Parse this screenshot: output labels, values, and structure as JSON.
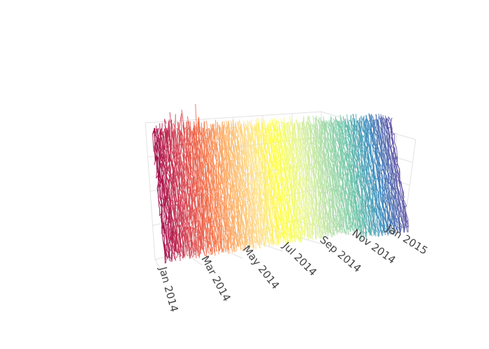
{
  "chart_data": {
    "type": "line",
    "projection": "3d",
    "title": "",
    "xlabel": "",
    "ylabel": "",
    "zlabel": "",
    "x_axis": {
      "ticks": [
        "Jan 2014",
        "Mar 2014",
        "May 2014",
        "Jul 2014",
        "Sep 2014",
        "Nov 2014",
        "Jan 2015"
      ],
      "range": [
        "2014-01-01",
        "2015-01-20"
      ]
    },
    "y_axis": {
      "tick_labels_visible": false
    },
    "z_axis": {
      "tick_labels_visible": false
    },
    "grid": true,
    "showlegend": false,
    "colorscale": "Spectral",
    "colorscale_stops": [
      "#9e0142",
      "#d53e4f",
      "#f46d43",
      "#fdae61",
      "#fee08b",
      "#ffff3b",
      "#e6f598",
      "#abdda4",
      "#66c2a5",
      "#3288bd",
      "#5e4fa2"
    ],
    "series_description": "Daily ridge lines, one per day from Jan 2014 to Jan 2015, colored along a Spectral colorscale by date",
    "series_count": 380,
    "points_per_series": 24
  }
}
